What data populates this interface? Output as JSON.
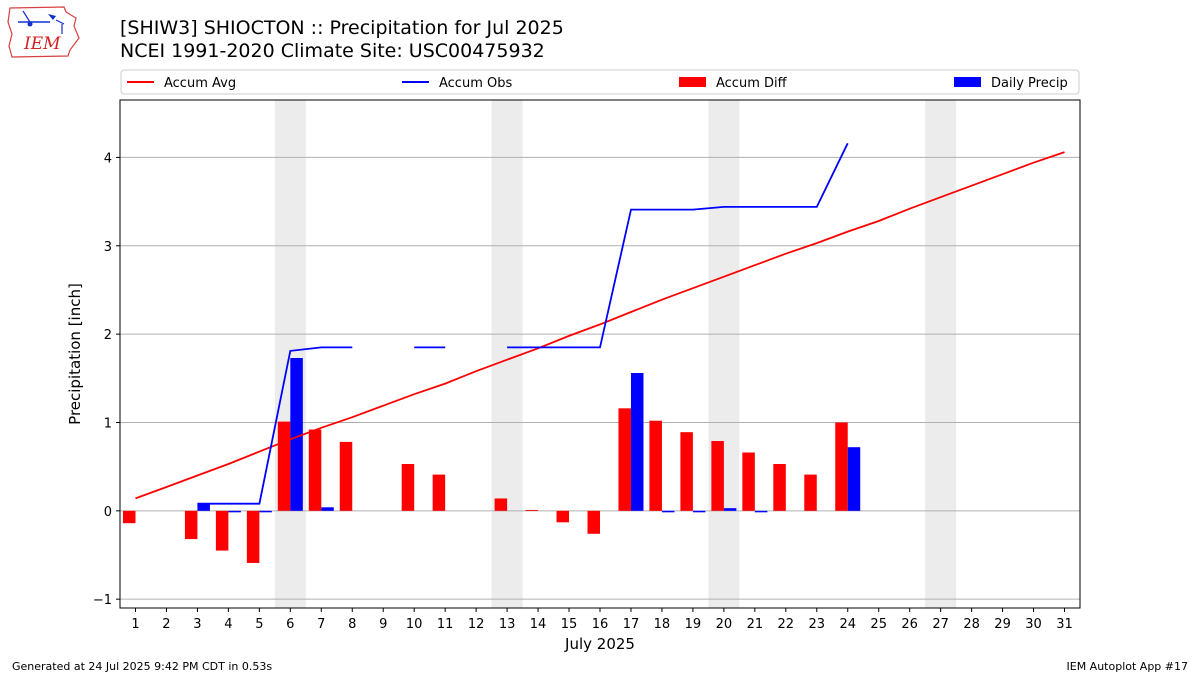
{
  "chart_data": {
    "type": "bar",
    "title": "[SHIW3] SHIOCTON :: Precipitation for Jul 2025",
    "subtitle": "NCEI 1991-2020 Climate Site: USC00475932",
    "xlabel": "July 2025",
    "ylabel": "Precipitation [inch]",
    "x": [
      1,
      2,
      3,
      4,
      5,
      6,
      7,
      8,
      9,
      10,
      11,
      12,
      13,
      14,
      15,
      16,
      17,
      18,
      19,
      20,
      21,
      22,
      23,
      24,
      25,
      26,
      27,
      28,
      29,
      30,
      31
    ],
    "xlim": [
      0.5,
      31.5
    ],
    "ylim": [
      -1.1,
      4.65
    ],
    "yticks": [
      -1,
      0,
      1,
      2,
      3,
      4
    ],
    "grid": "horizontal",
    "legend_position": "top",
    "weekend_shading": [
      [
        5.5,
        6.5
      ],
      [
        12.5,
        13.5
      ],
      [
        19.5,
        20.5
      ],
      [
        26.5,
        27.5
      ]
    ],
    "series": [
      {
        "name": "Accum Avg",
        "type": "line",
        "color": "#ff0000",
        "values": [
          0.14,
          0.27,
          0.4,
          0.53,
          0.67,
          0.81,
          0.94,
          1.06,
          1.19,
          1.32,
          1.44,
          1.58,
          1.71,
          1.84,
          1.98,
          2.11,
          2.25,
          2.39,
          2.52,
          2.65,
          2.78,
          2.91,
          3.03,
          3.16,
          3.28,
          3.42,
          3.55,
          3.68,
          3.81,
          3.94,
          4.06
        ]
      },
      {
        "name": "Accum Obs",
        "type": "line",
        "color": "#0000ff",
        "values": [
          null,
          null,
          0.08,
          0.08,
          0.08,
          1.81,
          1.85,
          1.85,
          null,
          1.85,
          1.85,
          null,
          1.85,
          1.85,
          1.85,
          1.85,
          3.41,
          3.41,
          3.41,
          3.44,
          3.44,
          3.44,
          3.44,
          4.16,
          null,
          null,
          null,
          null,
          null,
          null,
          null
        ]
      },
      {
        "name": "Accum Diff",
        "type": "bar",
        "color": "#ff0000",
        "values": [
          -0.14,
          null,
          -0.32,
          -0.45,
          -0.59,
          1.01,
          0.92,
          0.78,
          null,
          0.53,
          0.41,
          null,
          0.14,
          0.01,
          -0.13,
          -0.26,
          1.16,
          1.02,
          0.89,
          0.79,
          0.66,
          0.53,
          0.41,
          1.0,
          null,
          null,
          null,
          null,
          null,
          null,
          null
        ]
      },
      {
        "name": "Daily Precip",
        "type": "bar",
        "color": "#0000ff",
        "values": [
          null,
          null,
          0.08,
          0.0,
          0.0,
          1.73,
          0.04,
          null,
          null,
          null,
          null,
          null,
          null,
          null,
          null,
          null,
          1.56,
          0.0,
          0.0,
          0.03,
          0.0,
          null,
          null,
          0.72,
          null,
          null,
          null,
          null,
          null,
          null,
          null
        ]
      }
    ]
  },
  "footer": {
    "left": "Generated at 24 Jul 2025 9:42 PM CDT in 0.53s",
    "right": "IEM Autoplot App #17"
  },
  "logo": {
    "text": "IEM",
    "color": "#d42020"
  }
}
